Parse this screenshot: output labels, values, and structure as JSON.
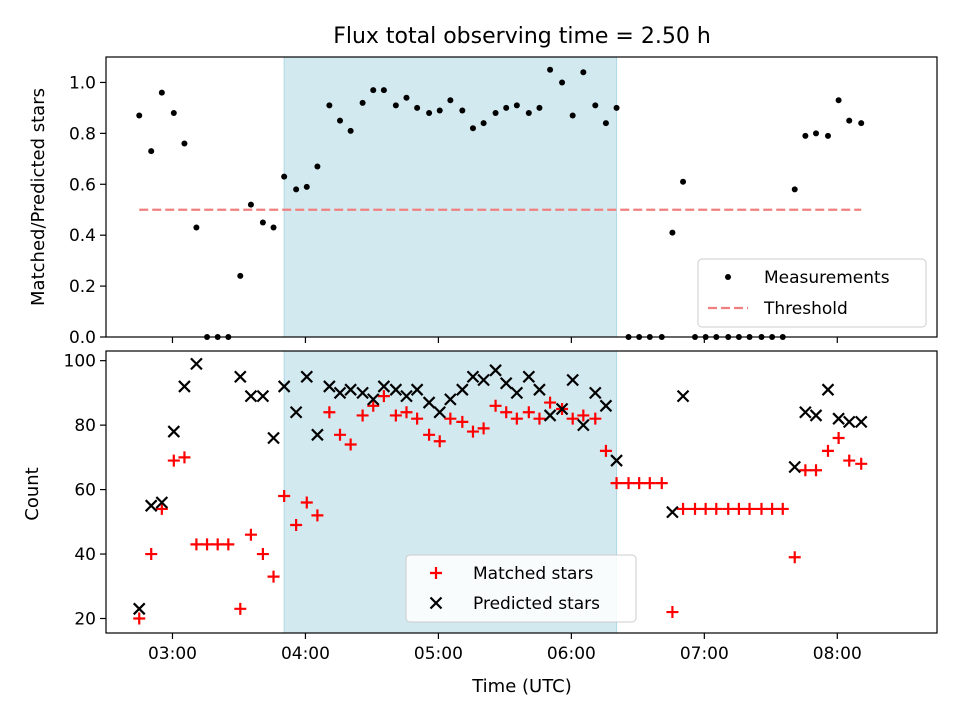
{
  "chart_data": [
    {
      "type": "scatter",
      "title": "Flux total observing time = 2.50 h",
      "ylabel": "Matched/Predicted stars",
      "ylim": [
        0,
        1.1
      ],
      "yticks": [
        "0.0",
        "0.2",
        "0.4",
        "0.6",
        "0.8",
        "1.0"
      ],
      "xlim_hours": [
        2.5,
        8.75
      ],
      "highlight_span_hours": [
        3.84,
        6.34
      ],
      "highlight_color": "#d3e9f0",
      "legend": {
        "position": "lower right",
        "entries": [
          "Measurements",
          "Threshold"
        ]
      },
      "threshold": {
        "name": "Threshold",
        "value": 0.5,
        "x_range_hours": [
          2.75,
          8.18
        ],
        "color": "#f08080"
      },
      "series": [
        {
          "name": "Measurements",
          "color": "#000000",
          "x": [
            2.75,
            2.84,
            2.92,
            3.01,
            3.09,
            3.18,
            3.26,
            3.34,
            3.42,
            3.51,
            3.59,
            3.68,
            3.76,
            3.84,
            3.93,
            4.01,
            4.09,
            4.18,
            4.26,
            4.34,
            4.43,
            4.51,
            4.59,
            4.68,
            4.76,
            4.84,
            4.93,
            5.01,
            5.09,
            5.18,
            5.26,
            5.34,
            5.43,
            5.51,
            5.59,
            5.68,
            5.76,
            5.84,
            5.93,
            6.01,
            6.09,
            6.18,
            6.26,
            6.34,
            6.43,
            6.51,
            6.59,
            6.68,
            6.76,
            6.84,
            6.93,
            7.01,
            7.09,
            7.18,
            7.26,
            7.34,
            7.43,
            7.51,
            7.59,
            7.68,
            7.76,
            7.84,
            7.93,
            8.01,
            8.09,
            8.18
          ],
          "y": [
            0.87,
            0.73,
            0.96,
            0.88,
            0.76,
            0.43,
            0.0,
            0.0,
            0.0,
            0.24,
            0.52,
            0.45,
            0.43,
            0.63,
            0.58,
            0.59,
            0.67,
            0.91,
            0.85,
            0.81,
            0.92,
            0.97,
            0.97,
            0.91,
            0.94,
            0.9,
            0.88,
            0.89,
            0.93,
            0.89,
            0.82,
            0.84,
            0.88,
            0.9,
            0.91,
            0.88,
            0.9,
            1.05,
            1.0,
            0.87,
            1.04,
            0.91,
            0.84,
            0.9,
            0.0,
            0.0,
            0.0,
            0.0,
            0.41,
            0.61,
            0.0,
            0.0,
            0.0,
            0.0,
            0.0,
            0.0,
            0.0,
            0.0,
            0.0,
            0.58,
            0.79,
            0.8,
            0.79,
            0.93,
            0.85,
            0.84
          ]
        }
      ]
    },
    {
      "type": "scatter",
      "xlabel": "Time (UTC)",
      "ylabel": "Count",
      "ylim": [
        15.5,
        103
      ],
      "yticks": [
        "20",
        "40",
        "60",
        "80",
        "100"
      ],
      "xticks": [
        "03:00",
        "04:00",
        "05:00",
        "06:00",
        "07:00",
        "08:00"
      ],
      "xlim_hours": [
        2.5,
        8.75
      ],
      "highlight_span_hours": [
        3.84,
        6.34
      ],
      "highlight_color": "#d3e9f0",
      "legend": {
        "position": "lower center",
        "entries": [
          "Matched stars",
          "Predicted stars"
        ]
      },
      "series": [
        {
          "name": "Matched stars",
          "marker": "+",
          "color": "#ff0000",
          "x": [
            2.75,
            2.84,
            2.92,
            3.01,
            3.09,
            3.18,
            3.26,
            3.34,
            3.42,
            3.51,
            3.59,
            3.68,
            3.76,
            3.84,
            3.93,
            4.01,
            4.09,
            4.18,
            4.26,
            4.34,
            4.43,
            4.51,
            4.59,
            4.68,
            4.76,
            4.84,
            4.93,
            5.01,
            5.09,
            5.18,
            5.26,
            5.34,
            5.43,
            5.51,
            5.59,
            5.68,
            5.76,
            5.84,
            5.93,
            6.01,
            6.09,
            6.18,
            6.26,
            6.34,
            6.43,
            6.51,
            6.59,
            6.68,
            6.76,
            6.84,
            6.93,
            7.01,
            7.09,
            7.18,
            7.26,
            7.34,
            7.43,
            7.51,
            7.59,
            7.68,
            7.76,
            7.84,
            7.93,
            8.01,
            8.09,
            8.18
          ],
          "y": [
            20,
            40,
            54,
            69,
            70,
            43,
            43,
            43,
            43,
            23,
            46,
            40,
            33,
            58,
            49,
            56,
            52,
            84,
            77,
            74,
            83,
            86,
            89,
            83,
            84,
            82,
            77,
            75,
            82,
            81,
            78,
            79,
            86,
            84,
            82,
            84,
            82,
            87,
            85,
            82,
            83,
            82,
            72,
            62,
            62,
            62,
            62,
            62,
            22,
            54,
            54,
            54,
            54,
            54,
            54,
            54,
            54,
            54,
            54,
            39,
            66,
            66,
            72,
            76,
            69,
            68
          ]
        },
        {
          "name": "Predicted stars",
          "marker": "x",
          "color": "#000000",
          "x": [
            2.75,
            2.84,
            2.92,
            3.01,
            3.09,
            3.18,
            3.51,
            3.59,
            3.68,
            3.76,
            3.84,
            3.93,
            4.01,
            4.09,
            4.18,
            4.26,
            4.34,
            4.43,
            4.51,
            4.59,
            4.68,
            4.76,
            4.84,
            4.93,
            5.01,
            5.09,
            5.18,
            5.26,
            5.34,
            5.43,
            5.51,
            5.59,
            5.68,
            5.76,
            5.84,
            5.93,
            6.01,
            6.09,
            6.18,
            6.26,
            6.34,
            6.76,
            6.84,
            7.68,
            7.76,
            7.84,
            7.93,
            8.01,
            8.09,
            8.18
          ],
          "y": [
            23,
            55,
            56,
            78,
            92,
            99,
            95,
            89,
            89,
            76,
            92,
            84,
            95,
            77,
            92,
            90,
            91,
            90,
            88,
            92,
            91,
            89,
            91,
            87,
            84,
            88,
            91,
            95,
            94,
            97,
            93,
            90,
            95,
            91,
            83,
            85,
            94,
            80,
            90,
            86,
            69,
            53,
            89,
            67,
            84,
            83,
            91,
            82,
            81,
            81
          ]
        }
      ]
    }
  ]
}
